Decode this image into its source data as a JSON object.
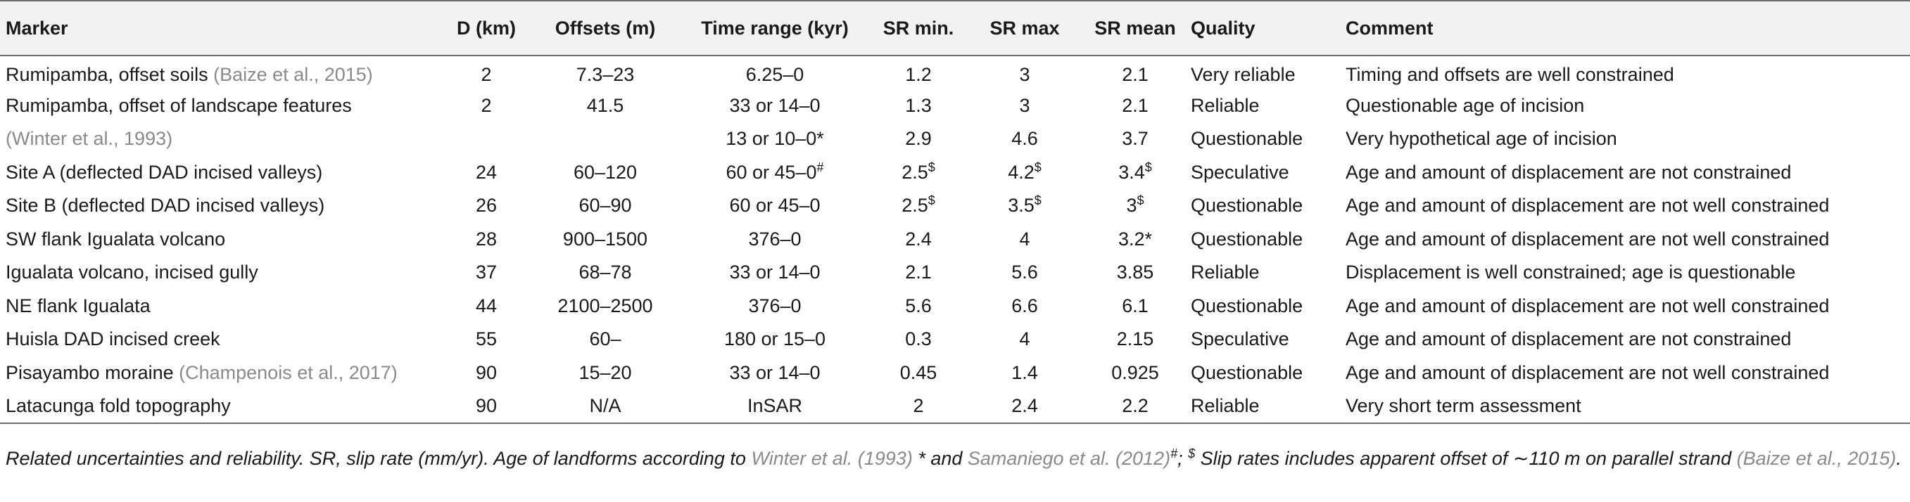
{
  "headers": {
    "marker": "Marker",
    "d": "D (km)",
    "offsets": "Offsets (m)",
    "time": "Time range (kyr)",
    "srmin": "SR min.",
    "srmax": "SR max",
    "srmean": "SR mean",
    "quality": "Quality",
    "comment": "Comment"
  },
  "rows": [
    {
      "marker": "Rumipamba, offset soils ",
      "marker_cite": "(Baize et al., 2015)",
      "d": "2",
      "offsets": "7.3–23",
      "time": "6.25–0",
      "time_sup": "",
      "srmin": "1.2",
      "srmin_sup": "",
      "srmax": "3",
      "srmax_sup": "",
      "srmean": "2.1",
      "srmean_sup": "",
      "quality": "Very reliable",
      "comment": "Timing and offsets are well constrained"
    },
    {
      "marker": "Rumipamba, offset of landscape features",
      "marker_cite": "",
      "d": "2",
      "offsets": "41.5",
      "time": "33 or 14–0",
      "time_sup": "",
      "srmin": "1.3",
      "srmin_sup": "",
      "srmax": "3",
      "srmax_sup": "",
      "srmean": "2.1",
      "srmean_sup": "",
      "quality": "Reliable",
      "comment": "Questionable age of incision"
    },
    {
      "marker": "",
      "marker_cite": "(Winter et al., 1993)",
      "d": "",
      "offsets": "",
      "time": "13 or 10–0*",
      "time_sup": "",
      "srmin": "2.9",
      "srmin_sup": "",
      "srmax": "4.6",
      "srmax_sup": "",
      "srmean": "3.7",
      "srmean_sup": "",
      "quality": "Questionable",
      "comment": "Very hypothetical age of incision"
    },
    {
      "marker": "Site A (deflected DAD incised valleys)",
      "marker_cite": "",
      "d": "24",
      "offsets": "60–120",
      "time": "60 or 45–0",
      "time_sup": "#",
      "srmin": "2.5",
      "srmin_sup": "$",
      "srmax": "4.2",
      "srmax_sup": "$",
      "srmean": "3.4",
      "srmean_sup": "$",
      "quality": "Speculative",
      "comment": "Age and amount of displacement are not constrained"
    },
    {
      "marker": "Site B (deflected DAD incised valleys)",
      "marker_cite": "",
      "d": "26",
      "offsets": "60–90",
      "time": "60 or 45–0",
      "time_sup": "",
      "srmin": "2.5",
      "srmin_sup": "$",
      "srmax": "3.5",
      "srmax_sup": "$",
      "srmean": "3",
      "srmean_sup": "$",
      "quality": "Questionable",
      "comment": "Age and amount of displacement are not well constrained"
    },
    {
      "marker": "SW flank Igualata volcano",
      "marker_cite": "",
      "d": "28",
      "offsets": "900–1500",
      "time": "376–0",
      "time_sup": "",
      "srmin": "2.4",
      "srmin_sup": "",
      "srmax": "4",
      "srmax_sup": "",
      "srmean": "3.2*",
      "srmean_sup": "",
      "quality": "Questionable",
      "comment": "Age and amount of displacement are not well constrained"
    },
    {
      "marker": "Igualata volcano, incised gully",
      "marker_cite": "",
      "d": "37",
      "offsets": "68–78",
      "time": "33 or 14–0",
      "time_sup": "",
      "srmin": "2.1",
      "srmin_sup": "",
      "srmax": "5.6",
      "srmax_sup": "",
      "srmean": "3.85",
      "srmean_sup": "",
      "quality": "Reliable",
      "comment": "Displacement is well constrained; age is questionable"
    },
    {
      "marker": "NE flank Igualata",
      "marker_cite": "",
      "d": "44",
      "offsets": "2100–2500",
      "time": "376–0",
      "time_sup": "",
      "srmin": "5.6",
      "srmin_sup": "",
      "srmax": "6.6",
      "srmax_sup": "",
      "srmean": "6.1",
      "srmean_sup": "",
      "quality": "Questionable",
      "comment": "Age and amount of displacement are not well constrained"
    },
    {
      "marker": "Huisla DAD incised creek",
      "marker_cite": "",
      "d": "55",
      "offsets": "60–",
      "time": "180 or 15–0",
      "time_sup": "",
      "srmin": "0.3",
      "srmin_sup": "",
      "srmax": "4",
      "srmax_sup": "",
      "srmean": "2.15",
      "srmean_sup": "",
      "quality": "Speculative",
      "comment": "Age and amount of displacement are not constrained"
    },
    {
      "marker": "Pisayambo moraine ",
      "marker_cite": "(Champenois et al., 2017)",
      "d": "90",
      "offsets": "15–20",
      "time": "33 or 14–0",
      "time_sup": "",
      "srmin": "0.45",
      "srmin_sup": "",
      "srmax": "1.4",
      "srmax_sup": "",
      "srmean": "0.925",
      "srmean_sup": "",
      "quality": "Questionable",
      "comment": "Age and amount of displacement are not well constrained"
    },
    {
      "marker": "Latacunga fold topography",
      "marker_cite": "",
      "d": "90",
      "offsets": "N/A",
      "time": "InSAR",
      "time_sup": "",
      "srmin": "2",
      "srmin_sup": "",
      "srmax": "2.4",
      "srmax_sup": "",
      "srmean": "2.2",
      "srmean_sup": "",
      "quality": "Reliable",
      "comment": "Very short term assessment"
    }
  ],
  "caption": {
    "p1": "Related uncertainties and reliability. SR, slip rate (mm/yr). Age of landforms according to ",
    "cite1": "Winter et al. (1993)",
    "p2": " * and ",
    "cite2": "Samaniego et al. (2012)",
    "sup_hash": "#",
    "p3": "; ",
    "sup_dollar": "$",
    "p4": " Slip rates includes apparent offset of ∼110 m on parallel strand ",
    "cite3": "(Baize et al., 2015)",
    "p5": "."
  },
  "colors": {
    "header_bg": "#f2f2f2",
    "rule": "#6e6e6e",
    "citation": "#8a8a8a",
    "text": "#1a1a1a"
  }
}
